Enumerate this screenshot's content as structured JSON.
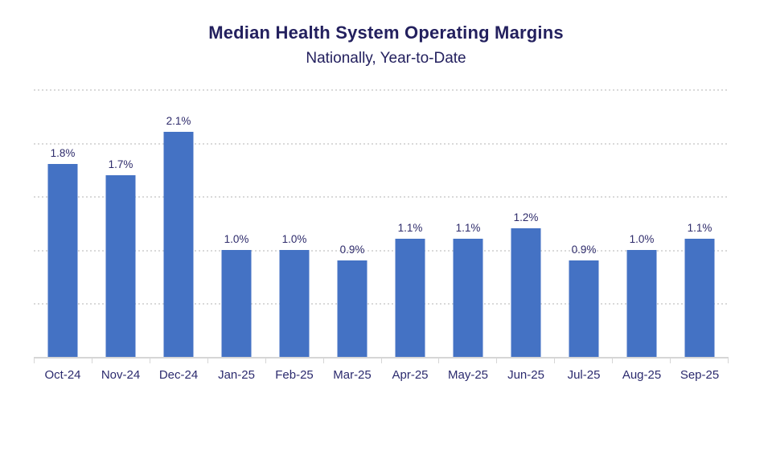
{
  "header": {
    "title": "Median Health System Operating Margins",
    "subtitle": "Nationally, Year-to-Date"
  },
  "colors": {
    "bar": "#4472C4",
    "title_text": "#23205E",
    "data_label_text": "#2E2B6B",
    "axis_label_text": "#2B2A6E",
    "gridline": "#D9D9D9",
    "axis_line": "#D6D6D6"
  },
  "chart_data": {
    "type": "bar",
    "title": "Median Health System Operating Margins",
    "subtitle": "Nationally, Year-to-Date",
    "categories": [
      "Oct-24",
      "Nov-24",
      "Dec-24",
      "Jan-25",
      "Feb-25",
      "Mar-25",
      "Apr-25",
      "May-25",
      "Jun-25",
      "Jul-25",
      "Aug-25",
      "Sep-25"
    ],
    "values": [
      1.8,
      1.7,
      2.1,
      1.0,
      1.0,
      0.9,
      1.1,
      1.1,
      1.2,
      0.9,
      1.0,
      1.1
    ],
    "data_labels": [
      "1.8%",
      "1.7%",
      "2.1%",
      "1.0%",
      "1.0%",
      "0.9%",
      "1.1%",
      "1.1%",
      "1.2%",
      "0.9%",
      "1.0%",
      "1.1%"
    ],
    "value_suffix": "%",
    "xlabel": "",
    "ylabel": "",
    "ylim": [
      0,
      2.5
    ],
    "gridline_interval": 0.5,
    "grid": "dotted-horizontal",
    "legend": "none",
    "y_axis_tick_labels": "none"
  }
}
